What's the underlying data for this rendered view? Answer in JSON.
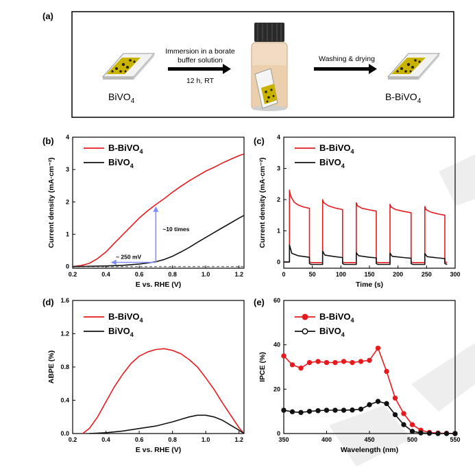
{
  "figure": {
    "panel_a": {
      "label": "(a)",
      "step1": [
        "Immersion in a borate",
        "buffer solution",
        "12 h, RT"
      ],
      "step2": "Washing & drying",
      "left_sample": "BiVO",
      "right_sample": "B-BiVO",
      "subscript": "4"
    },
    "panel_b": {
      "label": "(b)"
    },
    "panel_c": {
      "label": "(c)"
    },
    "panel_d": {
      "label": "(d)"
    },
    "panel_e": {
      "label": "(e)"
    },
    "legend": {
      "main_b": "B-BiVO",
      "main_p": "BiVO",
      "sub": "4"
    },
    "annotations": {
      "times": "~10 times",
      "shift": "~ 250 mV"
    },
    "colors": {
      "red": "#e8191c",
      "black": "#111111",
      "blue": "#7f8dff",
      "dash": "#777777"
    }
  },
  "chart_data": [
    {
      "id": "b",
      "type": "line",
      "xlabel": "E vs. RHE (V)",
      "ylabel": "Current density (mA·cm⁻²)",
      "xlim": [
        0.2,
        1.23
      ],
      "ylim": [
        -0.05,
        4
      ],
      "xticks": [
        0.2,
        0.4,
        0.6,
        0.8,
        1.0,
        1.2
      ],
      "xticklabels": [
        "0.2",
        "0.4",
        "0.6",
        "0.8",
        "1.0",
        "1.2"
      ],
      "yticks": [
        0,
        1,
        2,
        3,
        4
      ],
      "yticklabels": [
        "0",
        "1",
        "2",
        "3",
        "4"
      ],
      "series": [
        {
          "name": "B-BiVO4",
          "x": [
            0.2,
            0.25,
            0.3,
            0.35,
            0.4,
            0.45,
            0.5,
            0.55,
            0.6,
            0.65,
            0.7,
            0.75,
            0.8,
            0.85,
            0.9,
            0.95,
            1.0,
            1.05,
            1.1,
            1.15,
            1.2,
            1.23
          ],
          "y": [
            0.0,
            0.03,
            0.1,
            0.25,
            0.45,
            0.72,
            0.98,
            1.24,
            1.5,
            1.72,
            1.92,
            2.1,
            2.3,
            2.48,
            2.65,
            2.8,
            2.95,
            3.07,
            3.2,
            3.32,
            3.43,
            3.48
          ]
        },
        {
          "name": "BiVO4",
          "x": [
            0.2,
            0.3,
            0.4,
            0.5,
            0.6,
            0.65,
            0.7,
            0.75,
            0.8,
            0.85,
            0.9,
            0.95,
            1.0,
            1.05,
            1.1,
            1.15,
            1.2,
            1.23
          ],
          "y": [
            0.0,
            0.01,
            0.02,
            0.04,
            0.08,
            0.11,
            0.15,
            0.22,
            0.32,
            0.45,
            0.59,
            0.75,
            0.9,
            1.05,
            1.2,
            1.35,
            1.5,
            1.58
          ]
        }
      ]
    },
    {
      "id": "c",
      "type": "line",
      "xlabel": "Time (s)",
      "ylabel": "Current density (mA·cm⁻²)",
      "xlim": [
        0,
        300
      ],
      "ylim": [
        -0.2,
        4
      ],
      "xticks": [
        0,
        50,
        100,
        150,
        200,
        250,
        300
      ],
      "xticklabels": [
        "0",
        "50",
        "100",
        "150",
        "200",
        "250",
        "300"
      ],
      "yticks": [
        0,
        1,
        2,
        3,
        4
      ],
      "yticklabels": [
        "0",
        "1",
        "2",
        "3",
        "4"
      ],
      "series": [
        {
          "name": "B-BiVO4",
          "x": [
            0,
            10,
            10,
            12,
            18,
            25,
            35,
            45,
            45,
            48,
            68,
            68,
            70,
            78,
            90,
            103,
            103,
            106,
            127,
            127,
            129,
            137,
            150,
            162,
            162,
            165,
            186,
            186,
            188,
            196,
            210,
            223,
            223,
            226,
            247,
            247,
            249,
            257,
            270,
            282,
            282,
            286
          ],
          "y": [
            0,
            0,
            2.3,
            2.12,
            1.92,
            1.83,
            1.76,
            1.72,
            0.0,
            -0.02,
            -0.02,
            2.0,
            1.9,
            1.8,
            1.73,
            1.68,
            0.0,
            -0.02,
            -0.02,
            1.9,
            1.8,
            1.72,
            1.67,
            1.63,
            0.0,
            -0.02,
            -0.02,
            1.85,
            1.76,
            1.68,
            1.62,
            1.58,
            0.0,
            -0.02,
            -0.02,
            1.78,
            1.68,
            1.6,
            1.54,
            1.5,
            0.0,
            -0.02
          ]
        },
        {
          "name": "BiVO4",
          "x": [
            0,
            10,
            10,
            14,
            25,
            45,
            45,
            48,
            68,
            68,
            72,
            90,
            103,
            103,
            106,
            127,
            127,
            131,
            150,
            162,
            162,
            165,
            186,
            186,
            190,
            210,
            223,
            223,
            226,
            247,
            247,
            251,
            270,
            282,
            282,
            286
          ],
          "y": [
            0,
            0,
            0.55,
            0.28,
            0.2,
            0.15,
            -0.05,
            -0.08,
            -0.08,
            0.35,
            0.22,
            0.17,
            0.14,
            -0.05,
            -0.08,
            -0.08,
            0.3,
            0.2,
            0.15,
            0.13,
            -0.05,
            -0.08,
            -0.08,
            0.28,
            0.18,
            0.14,
            0.12,
            -0.05,
            -0.08,
            -0.08,
            0.27,
            0.17,
            0.13,
            0.11,
            -0.05,
            -0.08
          ]
        }
      ]
    },
    {
      "id": "d",
      "type": "line",
      "xlabel": "E vs. RHE (V)",
      "ylabel": "ABPE (%)",
      "xlim": [
        0.2,
        1.23
      ],
      "ylim": [
        0,
        1.6
      ],
      "xticks": [
        0.2,
        0.4,
        0.6,
        0.8,
        1.0,
        1.2
      ],
      "xticklabels": [
        "0.2",
        "0.4",
        "0.6",
        "0.8",
        "1.0",
        "1.2"
      ],
      "yticks": [
        0,
        0.4,
        0.8,
        1.2,
        1.6
      ],
      "yticklabels": [
        "0.0",
        "0.4",
        "0.8",
        "1.2",
        "1.6"
      ],
      "series": [
        {
          "name": "B-BiVO4",
          "x": [
            0.26,
            0.3,
            0.35,
            0.4,
            0.45,
            0.5,
            0.55,
            0.6,
            0.65,
            0.7,
            0.75,
            0.8,
            0.85,
            0.9,
            0.95,
            1.0,
            1.05,
            1.1,
            1.15,
            1.2,
            1.23
          ],
          "y": [
            0.0,
            0.06,
            0.2,
            0.38,
            0.56,
            0.71,
            0.84,
            0.93,
            0.98,
            1.01,
            1.02,
            1.0,
            0.96,
            0.89,
            0.8,
            0.67,
            0.53,
            0.37,
            0.22,
            0.07,
            0.0
          ]
        },
        {
          "name": "BiVO4",
          "x": [
            0.3,
            0.4,
            0.5,
            0.6,
            0.7,
            0.8,
            0.85,
            0.9,
            0.95,
            1.0,
            1.05,
            1.1,
            1.15,
            1.2,
            1.23
          ],
          "y": [
            0.0,
            0.01,
            0.03,
            0.06,
            0.09,
            0.14,
            0.17,
            0.2,
            0.22,
            0.22,
            0.2,
            0.16,
            0.1,
            0.04,
            0.0
          ]
        }
      ]
    },
    {
      "id": "e",
      "type": "line",
      "xlabel": "Wavelength (nm)",
      "ylabel": "IPCE (%)",
      "xlim": [
        350,
        550
      ],
      "ylim": [
        0,
        60
      ],
      "xticks": [
        350,
        400,
        450,
        500,
        550
      ],
      "xticklabels": [
        "350",
        "400",
        "450",
        "500",
        "550"
      ],
      "yticks": [
        0,
        20,
        40,
        60
      ],
      "yticklabels": [
        "0",
        "20",
        "40",
        "60"
      ],
      "series": [
        {
          "name": "B-BiVO4",
          "x": [
            350,
            360,
            370,
            380,
            390,
            400,
            410,
            420,
            430,
            440,
            450,
            460,
            470,
            480,
            490,
            500,
            510,
            520,
            530,
            540,
            550
          ],
          "y": [
            35,
            31,
            29.5,
            32,
            32.5,
            32,
            32,
            32.5,
            32,
            32.5,
            33,
            38.5,
            28,
            16,
            9,
            4,
            1.5,
            0.5,
            0.2,
            0.1,
            0
          ]
        },
        {
          "name": "BiVO4",
          "x": [
            350,
            360,
            370,
            380,
            390,
            400,
            410,
            420,
            430,
            440,
            450,
            460,
            470,
            480,
            490,
            500,
            510,
            520,
            530,
            540,
            550
          ],
          "y": [
            10.5,
            9.8,
            9.5,
            10,
            10.3,
            10.5,
            10.5,
            10.5,
            10.6,
            11,
            13,
            14.5,
            13.5,
            8.5,
            4,
            1,
            0.3,
            0.1,
            0,
            0,
            0
          ]
        }
      ]
    }
  ]
}
